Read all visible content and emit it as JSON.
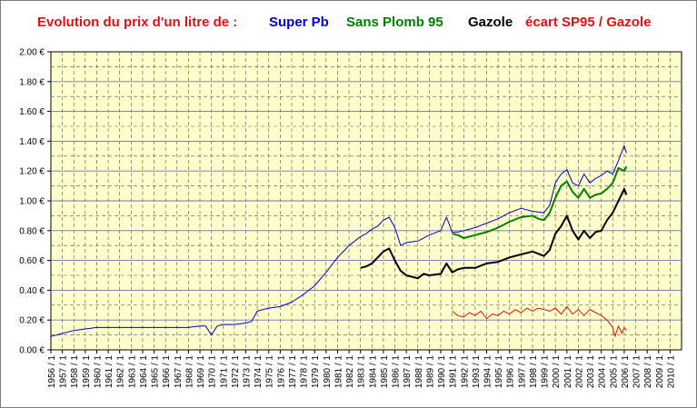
{
  "title": {
    "prefix": "Evolution du prix d'un litre de :",
    "legend": [
      {
        "label": "Super Pb",
        "color": "#0000cc"
      },
      {
        "label": "Sans Plomb 95",
        "color": "#008000"
      },
      {
        "label": "Gazole",
        "color": "#000000"
      },
      {
        "label": "écart SP95 / Gazole",
        "color": "#dd1111"
      }
    ],
    "prefix_color": "#dd1111"
  },
  "chart_data": {
    "type": "line",
    "x_tick_labels": [
      "1956 / 1",
      "1957 / 1",
      "1958 / 1",
      "1959 / 1",
      "1960 / 1",
      "1961 / 1",
      "1962 / 1",
      "1963 / 1",
      "1964 / 1",
      "1965 / 1",
      "1966 / 1",
      "1967 / 1",
      "1968 / 1",
      "1969 / 1",
      "1970 / 1",
      "1971 / 1",
      "1972 / 1",
      "1973 / 1",
      "1974 / 1",
      "1975 / 1",
      "1976 / 1",
      "1977 / 1",
      "1978 / 1",
      "1979 / 1",
      "1980 / 1",
      "1981 / 1",
      "1982 / 1",
      "1983 / 1",
      "1984 / 1",
      "1985 / 1",
      "1986 / 1",
      "1987 / 1",
      "1988 / 1",
      "1989 / 1",
      "1990 / 1",
      "1991 / 1",
      "1992 / 1",
      "1993 / 1",
      "1994 / 1",
      "1995 / 1",
      "1996 / 1",
      "1997 / 1",
      "1998 / 1",
      "1999 / 1",
      "2000 / 1",
      "2001 / 1",
      "2002 / 1",
      "2003 / 1",
      "2004 / 1",
      "2005 / 1",
      "2006 / 1",
      "2007 / 1",
      "2008 / 1",
      "2009 / 1",
      "2010 / 1"
    ],
    "y_tick_labels": [
      "0.00 €",
      "0.20 €",
      "0.40 €",
      "0.60 €",
      "0.80 €",
      "1.00 €",
      "1.20 €",
      "1.40 €",
      "1.60 €",
      "1.80 €",
      "2.00 €"
    ],
    "xlim": [
      1956,
      2011
    ],
    "ylim": [
      0,
      2.0
    ],
    "grid": true,
    "background": "#ffffcc",
    "series": [
      {
        "name": "Super Pb",
        "color": "#0000cc",
        "width": 1,
        "x": [
          1956,
          1957,
          1958,
          1959,
          1960,
          1962,
          1964,
          1966,
          1968,
          1969,
          1969.5,
          1970,
          1970.5,
          1971,
          1972,
          1973,
          1973.5,
          1974,
          1975,
          1976,
          1977,
          1978,
          1979,
          1980,
          1981,
          1982,
          1983,
          1983.5,
          1984,
          1984.5,
          1985,
          1985.5,
          1986,
          1986.5,
          1987,
          1988,
          1989,
          1990,
          1990.5,
          1991,
          1991.5,
          1992,
          1993,
          1994,
          1995,
          1996,
          1997,
          1998,
          1999,
          1999.5,
          2000,
          2000.5,
          2001,
          2001.5,
          2002,
          2002.5,
          2003,
          2003.5,
          2004,
          2004.5,
          2005,
          2005.5,
          2006,
          2006.2
        ],
        "y": [
          0.09,
          0.11,
          0.13,
          0.14,
          0.15,
          0.15,
          0.15,
          0.15,
          0.15,
          0.16,
          0.16,
          0.1,
          0.16,
          0.17,
          0.17,
          0.18,
          0.19,
          0.26,
          0.28,
          0.29,
          0.32,
          0.37,
          0.43,
          0.52,
          0.62,
          0.7,
          0.76,
          0.78,
          0.81,
          0.83,
          0.87,
          0.89,
          0.82,
          0.7,
          0.72,
          0.73,
          0.77,
          0.8,
          0.89,
          0.79,
          0.79,
          0.8,
          0.82,
          0.85,
          0.88,
          0.92,
          0.95,
          0.93,
          0.92,
          0.97,
          1.12,
          1.18,
          1.21,
          1.12,
          1.1,
          1.18,
          1.12,
          1.15,
          1.17,
          1.2,
          1.18,
          1.27,
          1.37,
          1.32
        ]
      },
      {
        "name": "Sans Plomb 95",
        "color": "#008000",
        "width": 2,
        "x": [
          1991,
          1991.5,
          1992,
          1993,
          1994,
          1995,
          1996,
          1997,
          1998,
          1998.5,
          1999,
          1999.5,
          2000,
          2000.5,
          2001,
          2001.5,
          2002,
          2002.5,
          2003,
          2003.5,
          2004,
          2004.5,
          2005,
          2005.5,
          2006,
          2006.2
        ],
        "y": [
          0.78,
          0.77,
          0.75,
          0.77,
          0.79,
          0.82,
          0.86,
          0.89,
          0.9,
          0.88,
          0.87,
          0.92,
          1.02,
          1.1,
          1.13,
          1.06,
          1.02,
          1.08,
          1.02,
          1.04,
          1.05,
          1.08,
          1.12,
          1.22,
          1.2,
          1.23
        ]
      },
      {
        "name": "Gazole",
        "color": "#000000",
        "width": 2,
        "x": [
          1983,
          1983.5,
          1984,
          1984.5,
          1985,
          1985.5,
          1986,
          1986.5,
          1987,
          1988,
          1988.5,
          1989,
          1990,
          1990.5,
          1991,
          1991.5,
          1992,
          1993,
          1994,
          1995,
          1996,
          1997,
          1998,
          1999,
          1999.5,
          2000,
          2000.5,
          2001,
          2001.5,
          2002,
          2002.5,
          2003,
          2003.5,
          2004,
          2004.5,
          2005,
          2005.5,
          2006,
          2006.2
        ],
        "y": [
          0.55,
          0.56,
          0.58,
          0.62,
          0.66,
          0.68,
          0.6,
          0.53,
          0.5,
          0.48,
          0.51,
          0.5,
          0.51,
          0.58,
          0.52,
          0.54,
          0.55,
          0.55,
          0.58,
          0.59,
          0.62,
          0.64,
          0.66,
          0.63,
          0.67,
          0.78,
          0.83,
          0.9,
          0.8,
          0.74,
          0.8,
          0.75,
          0.79,
          0.8,
          0.87,
          0.92,
          1.0,
          1.08,
          1.04
        ]
      },
      {
        "name": "écart SP95 / Gazole",
        "color": "#dd1111",
        "width": 1,
        "x": [
          1991,
          1991.5,
          1992,
          1992.5,
          1993,
          1993.5,
          1994,
          1994.5,
          1995,
          1995.5,
          1996,
          1996.5,
          1997,
          1997.5,
          1998,
          1998.5,
          1999,
          1999.5,
          2000,
          2000.5,
          2001,
          2001.5,
          2002,
          2002.5,
          2003,
          2003.5,
          2004,
          2004.5,
          2005,
          2005.2,
          2005.5,
          2005.8,
          2006,
          2006.2
        ],
        "y": [
          0.26,
          0.23,
          0.22,
          0.25,
          0.23,
          0.26,
          0.21,
          0.24,
          0.23,
          0.26,
          0.24,
          0.27,
          0.25,
          0.28,
          0.26,
          0.28,
          0.27,
          0.26,
          0.28,
          0.24,
          0.29,
          0.24,
          0.27,
          0.23,
          0.27,
          0.25,
          0.23,
          0.2,
          0.15,
          0.09,
          0.16,
          0.11,
          0.15,
          0.13
        ]
      }
    ]
  }
}
